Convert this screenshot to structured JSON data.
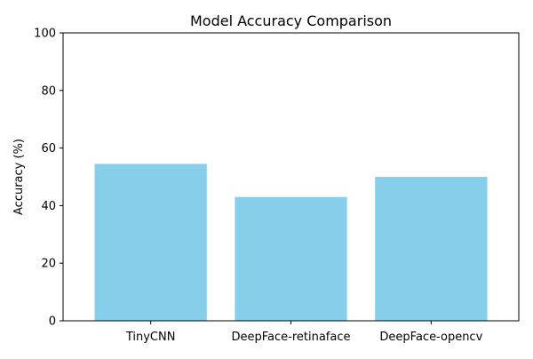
{
  "chart_data": {
    "type": "bar",
    "title": "Model Accuracy Comparison",
    "xlabel": "",
    "ylabel": "Accuracy (%)",
    "categories": [
      "TinyCNN",
      "DeepFace-retinaface",
      "DeepFace-opencv"
    ],
    "values": [
      54.5,
      43.0,
      50.0
    ],
    "ylim": [
      0,
      100
    ],
    "yticks": [
      "0",
      "20",
      "40",
      "60",
      "80",
      "100"
    ],
    "bar_color": "#87ceeb",
    "grid": false,
    "legend": "none"
  }
}
